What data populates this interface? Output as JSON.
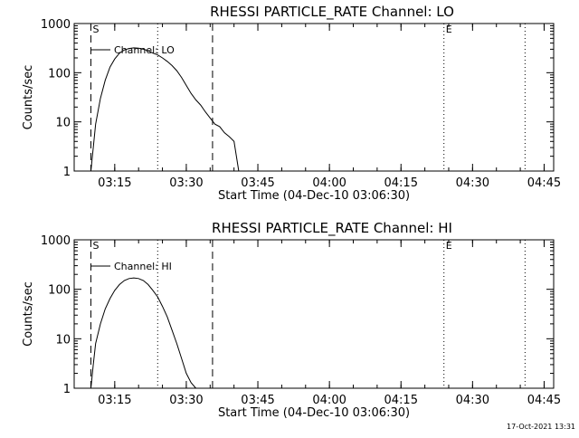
{
  "footer": {
    "timestamp": "17-Oct-2021 13:31"
  },
  "chart_data": [
    {
      "type": "line",
      "title": "RHESSI PARTICLE_RATE Channel: LO",
      "xlabel": "Start Time (04-Dec-10 03:06:30)",
      "ylabel": "Counts/sec",
      "yscale": "log",
      "ylim": [
        1,
        1000
      ],
      "xlim": [
        "03:06:30",
        "04:47:00"
      ],
      "xticks": [
        "03:15",
        "03:30",
        "03:45",
        "04:00",
        "04:15",
        "04:30",
        "04:45"
      ],
      "yticks": [
        "1",
        "10",
        "100",
        "1000"
      ],
      "grid": false,
      "legend": {
        "placement": "top-left",
        "entries": [
          "Channel: LO"
        ]
      },
      "markers": [
        {
          "label": "S",
          "time": "03:10:00",
          "style": "dashed"
        },
        {
          "label": "",
          "time": "03:24:00",
          "style": "dotted"
        },
        {
          "label": "",
          "time": "03:35:30",
          "style": "dashed"
        },
        {
          "label": "E",
          "time": "04:24:00",
          "style": "dotted"
        },
        {
          "label": "",
          "time": "04:41:00",
          "style": "dotted"
        }
      ],
      "series": [
        {
          "name": "Channel: LO",
          "x": [
            "03:10:00",
            "03:10:30",
            "03:11:00",
            "03:12:00",
            "03:13:00",
            "03:14:00",
            "03:15:00",
            "03:16:00",
            "03:17:00",
            "03:18:00",
            "03:19:00",
            "03:20:00",
            "03:21:00",
            "03:22:00",
            "03:23:00",
            "03:24:00",
            "03:25:00",
            "03:26:00",
            "03:27:00",
            "03:28:00",
            "03:29:00",
            "03:30:00",
            "03:31:00",
            "03:32:00",
            "03:33:00",
            "03:34:00",
            "03:35:00",
            "03:36:00",
            "03:37:00",
            "03:38:00",
            "03:39:00",
            "03:40:00",
            "03:41:00"
          ],
          "y": [
            1,
            3,
            9,
            30,
            70,
            130,
            190,
            250,
            290,
            310,
            320,
            315,
            300,
            280,
            250,
            230,
            200,
            170,
            140,
            110,
            80,
            55,
            38,
            28,
            22,
            16,
            12,
            9,
            8,
            6,
            5,
            4,
            1
          ]
        }
      ]
    },
    {
      "type": "line",
      "title": "RHESSI PARTICLE_RATE Channel: HI",
      "xlabel": "Start Time (04-Dec-10 03:06:30)",
      "ylabel": "Counts/sec",
      "yscale": "log",
      "ylim": [
        1,
        1000
      ],
      "xlim": [
        "03:06:30",
        "04:47:00"
      ],
      "xticks": [
        "03:15",
        "03:30",
        "03:45",
        "04:00",
        "04:15",
        "04:30",
        "04:45"
      ],
      "yticks": [
        "1",
        "10",
        "100",
        "1000"
      ],
      "grid": false,
      "legend": {
        "placement": "top-left",
        "entries": [
          "Channel: HI"
        ]
      },
      "markers": [
        {
          "label": "S",
          "time": "03:10:00",
          "style": "dashed"
        },
        {
          "label": "",
          "time": "03:24:00",
          "style": "dotted"
        },
        {
          "label": "",
          "time": "03:35:30",
          "style": "dashed"
        },
        {
          "label": "E",
          "time": "04:24:00",
          "style": "dotted"
        },
        {
          "label": "",
          "time": "04:41:00",
          "style": "dotted"
        }
      ],
      "series": [
        {
          "name": "Channel: HI",
          "x": [
            "03:10:00",
            "03:10:30",
            "03:11:00",
            "03:12:00",
            "03:13:00",
            "03:14:00",
            "03:15:00",
            "03:16:00",
            "03:17:00",
            "03:18:00",
            "03:19:00",
            "03:20:00",
            "03:21:00",
            "03:22:00",
            "03:23:00",
            "03:24:00",
            "03:25:00",
            "03:26:00",
            "03:27:00",
            "03:28:00",
            "03:29:00",
            "03:30:00",
            "03:31:00",
            "03:32:00"
          ],
          "y": [
            1,
            3,
            8,
            20,
            40,
            65,
            95,
            125,
            150,
            165,
            170,
            165,
            150,
            125,
            95,
            70,
            45,
            28,
            15,
            8,
            4,
            2,
            1.3,
            1
          ]
        }
      ]
    }
  ]
}
